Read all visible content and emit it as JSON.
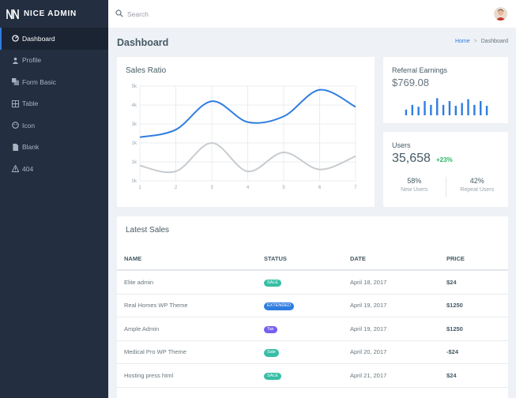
{
  "brand": {
    "name": "NICE ADMIN"
  },
  "search": {
    "placeholder": "Search"
  },
  "sidebar": {
    "items": [
      {
        "label": "Dashboard",
        "icon": "dashboard-gauge-icon",
        "active": true
      },
      {
        "label": "Profile",
        "icon": "user-icon",
        "active": false
      },
      {
        "label": "Form Basic",
        "icon": "layers-icon",
        "active": false
      },
      {
        "label": "Table",
        "icon": "table-grid-icon",
        "active": false
      },
      {
        "label": "Icon",
        "icon": "face-icon",
        "active": false
      },
      {
        "label": "Blank",
        "icon": "file-icon",
        "active": false
      },
      {
        "label": "404",
        "icon": "warning-icon",
        "active": false
      }
    ]
  },
  "page": {
    "title": "Dashboard",
    "breadcrumb": {
      "home": "Home",
      "separator": ">",
      "current": "Dashboard"
    }
  },
  "sales_ratio": {
    "title": "Sales Ratio"
  },
  "referral": {
    "title": "Referral Earnings",
    "value": "$769.08",
    "bar_color": "#2f7de1"
  },
  "users": {
    "title": "Users",
    "value": "35,658",
    "growth": "+23%",
    "new_users_pct": "58%",
    "new_users_label": "New Users",
    "repeat_users_pct": "42%",
    "repeat_users_label": "Repeat Users"
  },
  "latest_sales": {
    "title": "Latest Sales",
    "columns": [
      "NAME",
      "STATUS",
      "DATE",
      "PRICE"
    ],
    "rows": [
      {
        "name": "Elite admin",
        "status": "SALE",
        "status_color": "#36bea6",
        "date": "April 18, 2017",
        "price": "$24"
      },
      {
        "name": "Real Homes WP Theme",
        "status": "EXTENDED",
        "status_color": "#2f7de1",
        "date": "April 19, 2017",
        "price": "$1250"
      },
      {
        "name": "Ample Admin",
        "status": "Tax",
        "status_color": "#7460ee",
        "date": "April 19, 2017",
        "price": "$1250"
      },
      {
        "name": "Medical Pro WP Theme",
        "status": "Sale",
        "status_color": "#36bea6",
        "date": "April 20, 2017",
        "price": "-$24"
      },
      {
        "name": "Hosting press html",
        "status": "SALE",
        "status_color": "#36bea6",
        "date": "April 21, 2017",
        "price": "$24"
      }
    ]
  },
  "chart_data": {
    "type": "line",
    "title": "Sales Ratio",
    "x": [
      1,
      2,
      3,
      4,
      5,
      6,
      7
    ],
    "y_tick_labels": [
      "0k",
      "1k",
      "2k",
      "3k",
      "4k",
      "5k"
    ],
    "ylim": [
      0,
      5000
    ],
    "grid": true,
    "series": [
      {
        "values": [
          2300,
          2700,
          4200,
          3100,
          3400,
          4800,
          3900
        ],
        "color": "#2f7de1"
      },
      {
        "values": [
          800,
          500,
          2000,
          500,
          1500,
          600,
          1300
        ],
        "color": "#c8ccd0"
      }
    ]
  },
  "referral_bars": [
    0.3,
    0.55,
    0.45,
    0.75,
    0.55,
    0.9,
    0.55,
    0.75,
    0.5,
    0.65,
    0.85,
    0.55,
    0.75,
    0.5
  ]
}
